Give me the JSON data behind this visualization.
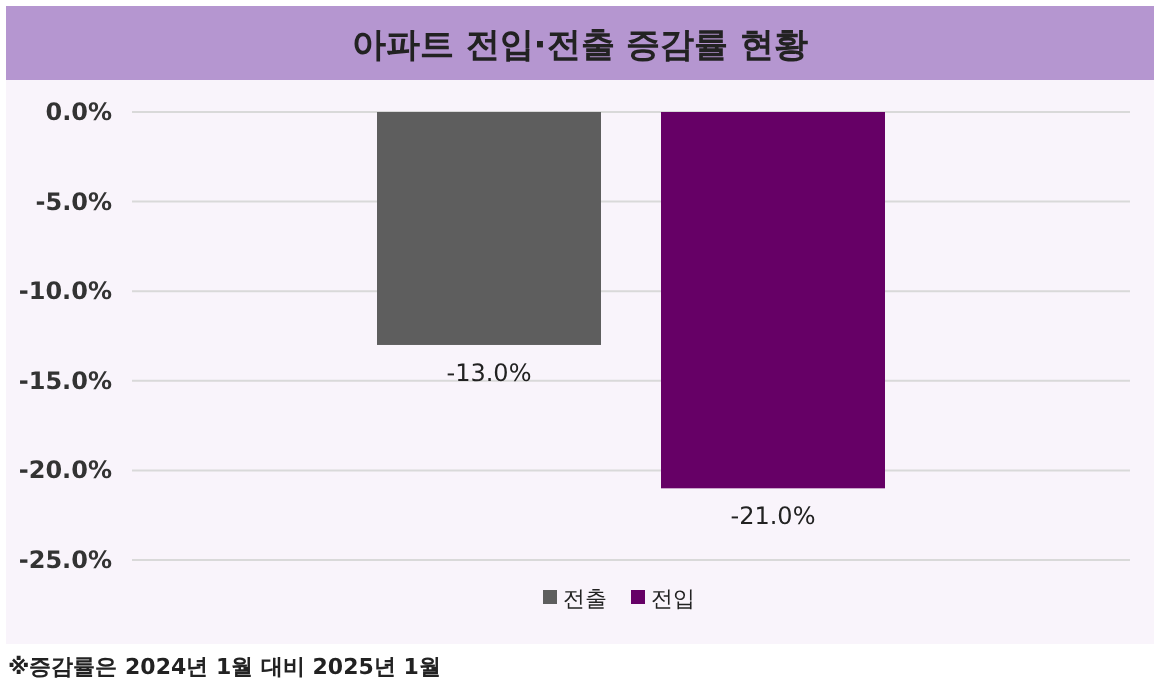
{
  "chart_data": {
    "type": "bar",
    "title": "아파트 전입·전출 증감률 현황",
    "categories": [
      null
    ],
    "series": [
      {
        "name": "전출",
        "color": "#5e5e5e",
        "values": [
          -13
        ],
        "value_labels": [
          "-13.0%"
        ]
      },
      {
        "name": "전입",
        "color": "#660066",
        "values": [
          -21
        ],
        "value_labels": [
          "-21.0%"
        ]
      }
    ],
    "ylim": [
      -25,
      0
    ],
    "yticks": [
      {
        "value": 0,
        "label": "0.0%"
      },
      {
        "value": -5,
        "label": "-5.0%"
      },
      {
        "value": -10,
        "label": "-10.0%"
      },
      {
        "value": -15,
        "label": "-15.0%"
      },
      {
        "value": -20,
        "label": "-20.0%"
      },
      {
        "value": -25,
        "label": "-25.0%"
      }
    ],
    "grid": "y",
    "legend": "bottom",
    "tick_labels": "y",
    "annotations": [
      "※증감률은 2024년 1월 대비 2025년 1월"
    ]
  }
}
